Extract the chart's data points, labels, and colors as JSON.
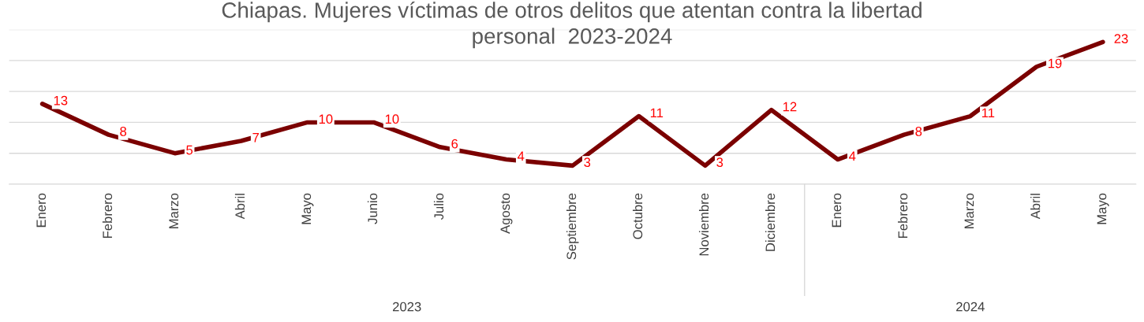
{
  "chart_data": {
    "type": "line",
    "title": "Chiapas. Mujeres víctimas de otros delitos que atentan contra la libertad\npersonal  2023-2024",
    "categories": [
      "Enero",
      "Febrero",
      "Marzo",
      "Abril",
      "Mayo",
      "Junio",
      "Julio",
      "Agosto",
      "Septiembre",
      "Octubre",
      "Noviembre",
      "Diciembre",
      "Enero",
      "Febrero",
      "Marzo",
      "Abril",
      "Mayo"
    ],
    "series": [
      {
        "color": "#7b0000",
        "values": [
          13,
          8,
          5,
          7,
          10,
          10,
          6,
          4,
          3,
          11,
          3,
          12,
          4,
          8,
          11,
          19,
          23
        ]
      }
    ],
    "ylim": [
      0,
      25
    ],
    "yticks": [
      {
        "value": 0,
        "label": null
      },
      {
        "value": 5,
        "label": null
      },
      {
        "value": 10,
        "label": null
      },
      {
        "value": 15,
        "label": null
      },
      {
        "value": 20,
        "label": null
      },
      {
        "value": 25,
        "label": null
      }
    ],
    "grid": "y",
    "tick_labels": "x",
    "data_labels": true,
    "legend": false,
    "marker": "none",
    "line_style": "solid",
    "annotations": [
      "2023",
      "2024"
    ]
  }
}
